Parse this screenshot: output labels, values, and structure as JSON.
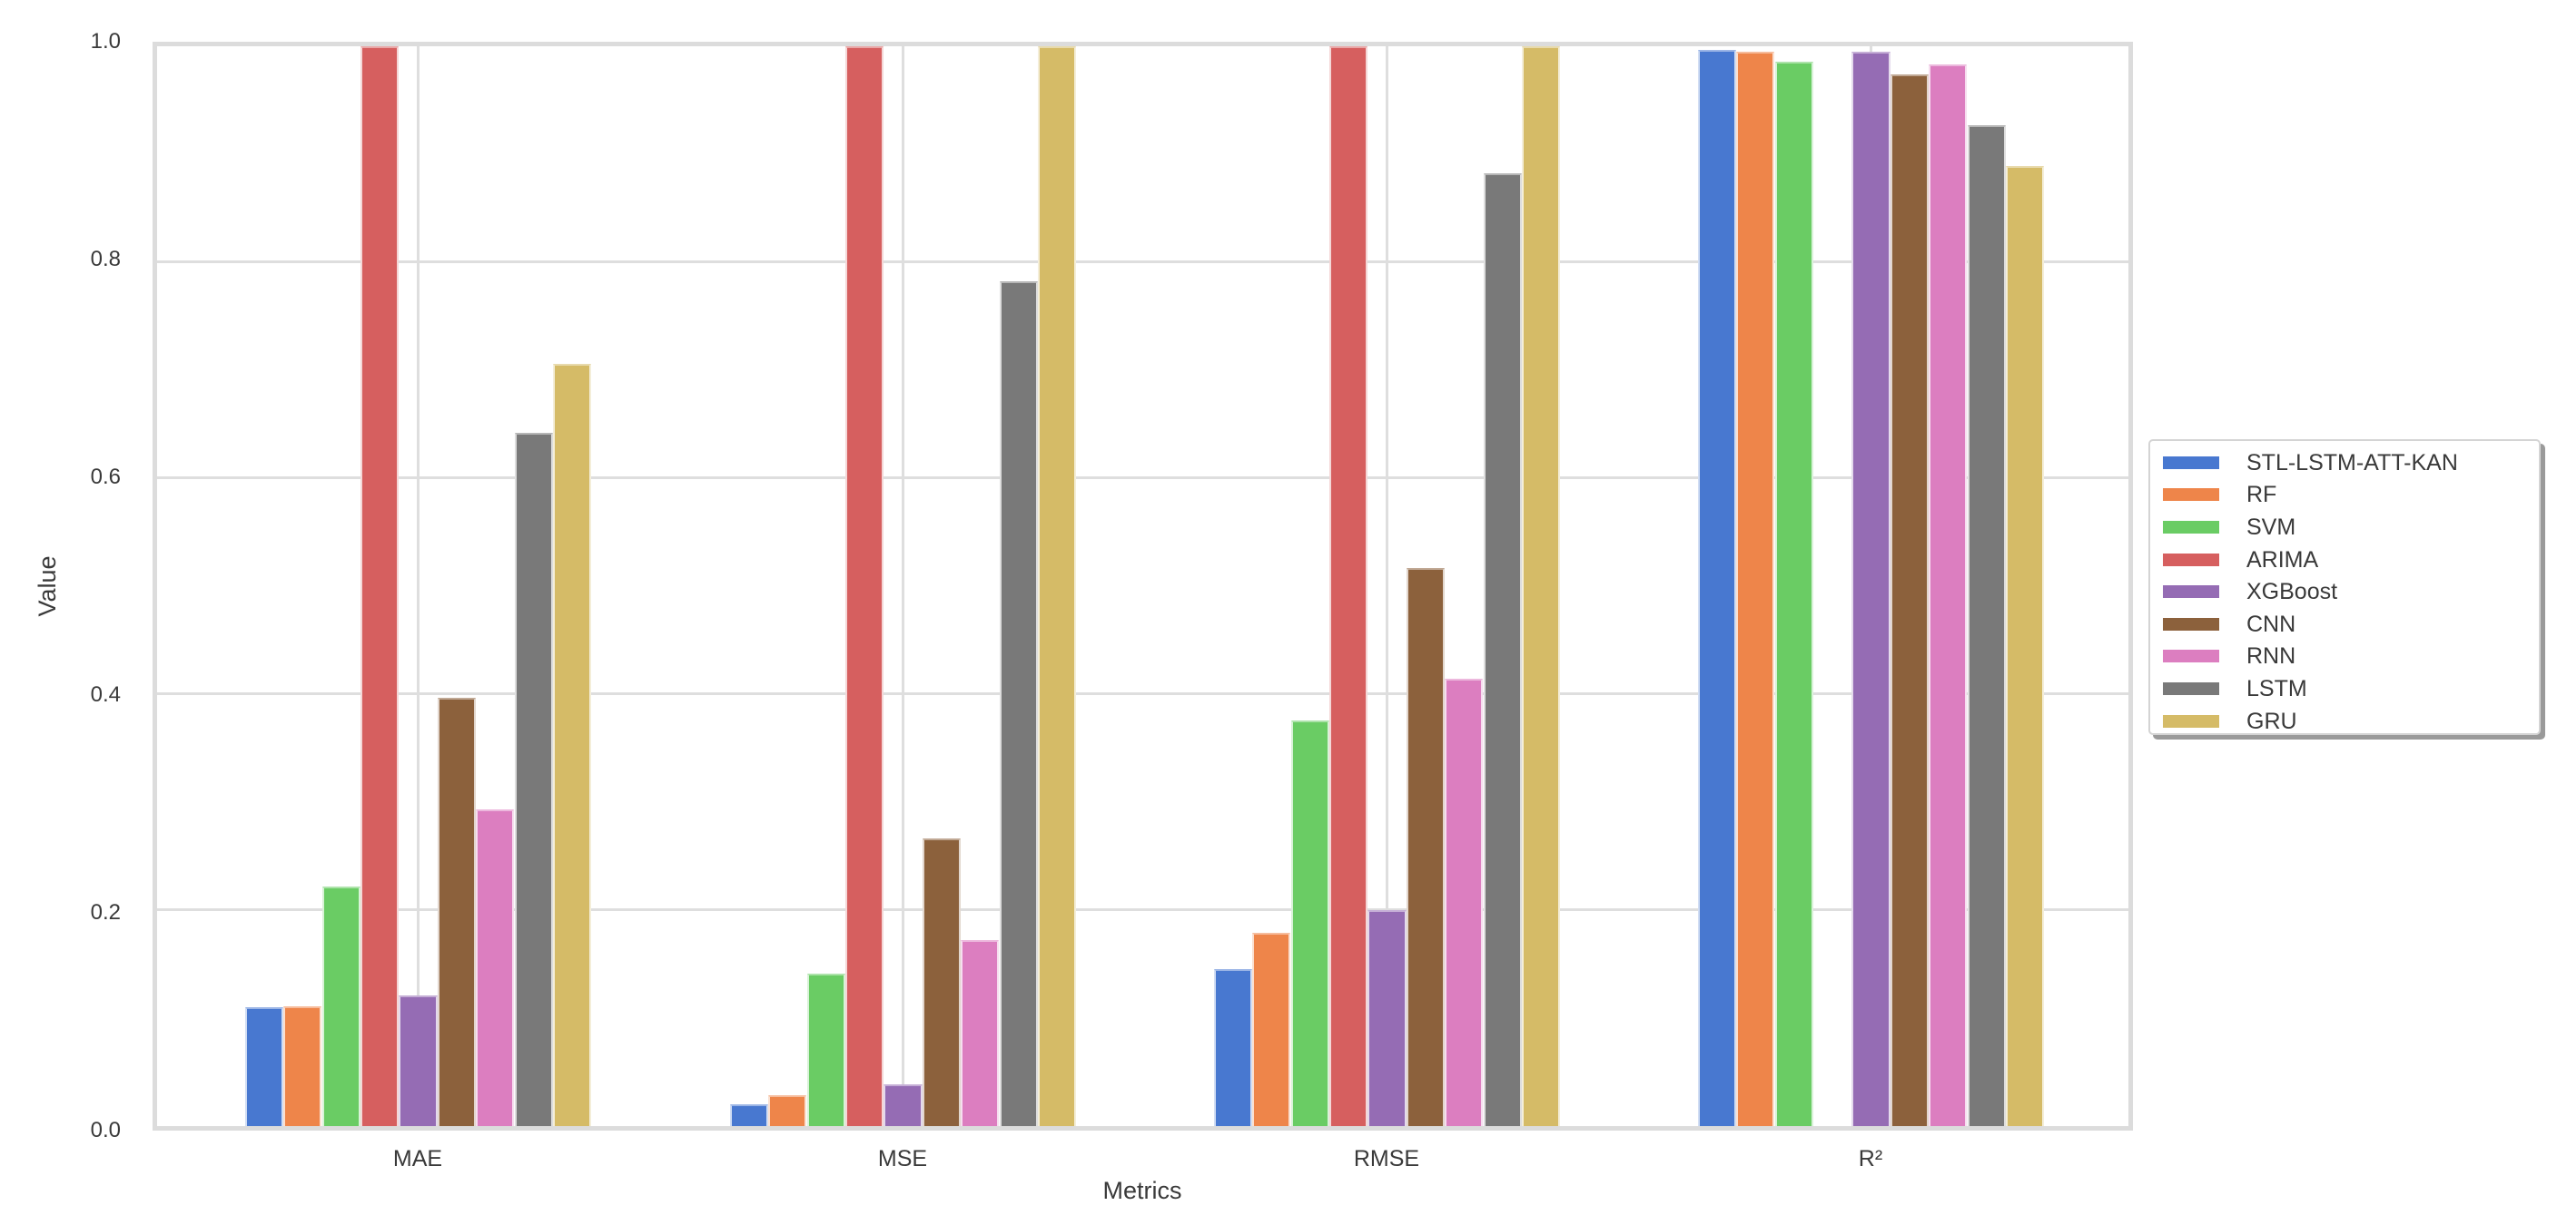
{
  "chart_data": {
    "type": "bar",
    "title": "",
    "xlabel": "Metrics",
    "ylabel": "Value",
    "ylim": [
      0.0,
      1.0
    ],
    "yticks": [
      "0.0",
      "0.2",
      "0.4",
      "0.6",
      "0.8",
      "1.0"
    ],
    "grid": true,
    "legend_position": "right, outside plot (center-left anchor)",
    "categories": [
      "MAE",
      "MSE",
      "RMSE",
      "R²"
    ],
    "series": [
      {
        "name": "STL-LSTM-ATT-KAN",
        "color": "#4878d0",
        "values": [
          0.11,
          0.02,
          0.145,
          0.997
        ]
      },
      {
        "name": "RF",
        "color": "#ee854a",
        "values": [
          0.111,
          0.029,
          0.179,
          0.995
        ]
      },
      {
        "name": "SVM",
        "color": "#6acc64",
        "values": [
          0.222,
          0.141,
          0.376,
          0.986
        ]
      },
      {
        "name": "ARIMA",
        "color": "#d65f5f",
        "values": [
          1.0,
          1.0,
          1.0,
          0.0
        ]
      },
      {
        "name": "XGBoost",
        "color": "#956cb4",
        "values": [
          0.121,
          0.039,
          0.2,
          0.995
        ]
      },
      {
        "name": "CNN",
        "color": "#8c613c",
        "values": [
          0.397,
          0.266,
          0.517,
          0.974
        ]
      },
      {
        "name": "RNN",
        "color": "#dc7ec0",
        "values": [
          0.293,
          0.172,
          0.414,
          0.983
        ]
      },
      {
        "name": "LSTM",
        "color": "#797979",
        "values": [
          0.642,
          0.782,
          0.882,
          0.927
        ]
      },
      {
        "name": "GRU",
        "color": "#d5bb67",
        "values": [
          0.706,
          1.0,
          1.0,
          0.889
        ]
      }
    ]
  },
  "axes": {
    "xlabel": "Metrics",
    "ylabel": "Value",
    "yticks": [
      "0.0",
      "0.2",
      "0.4",
      "0.6",
      "0.8",
      "1.0"
    ],
    "xticks": [
      "MAE",
      "MSE",
      "RMSE",
      "R²"
    ]
  },
  "legend": {
    "items": [
      {
        "label": "STL-LSTM-ATT-KAN",
        "color": "#4878d0"
      },
      {
        "label": "RF",
        "color": "#ee854a"
      },
      {
        "label": "SVM",
        "color": "#6acc64"
      },
      {
        "label": "ARIMA",
        "color": "#d65f5f"
      },
      {
        "label": "XGBoost",
        "color": "#956cb4"
      },
      {
        "label": "CNN",
        "color": "#8c613c"
      },
      {
        "label": "RNN",
        "color": "#dc7ec0"
      },
      {
        "label": "LSTM",
        "color": "#797979"
      },
      {
        "label": "GRU",
        "color": "#d5bb67"
      }
    ]
  }
}
